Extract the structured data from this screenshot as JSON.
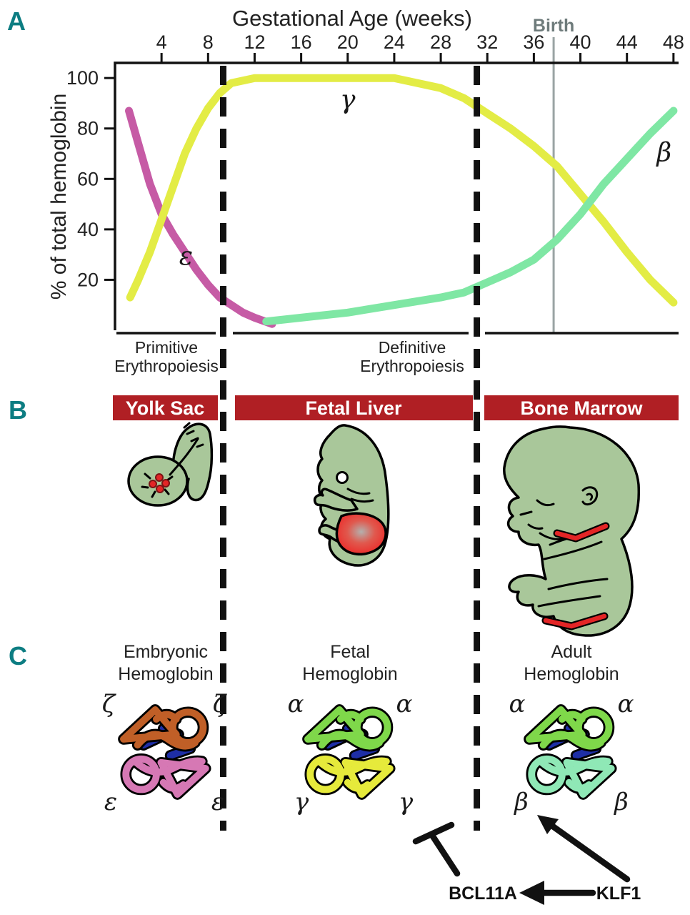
{
  "panel_labels": {
    "a": "A",
    "b": "B",
    "c": "C"
  },
  "chart_data": {
    "type": "line",
    "title": "Gestational Age (weeks)",
    "ylabel": "% of total hemoglobin",
    "x_ticks": [
      4,
      8,
      12,
      16,
      20,
      24,
      28,
      32,
      36,
      40,
      44,
      48
    ],
    "y_ticks": [
      20,
      40,
      60,
      80,
      100
    ],
    "xlim": [
      0,
      48.5
    ],
    "ylim": [
      0,
      106
    ],
    "grid": false,
    "legend": "inline-greek-labels",
    "birth_week": 37.7,
    "birth_label": "Birth",
    "stage_boundaries_weeks": [
      9.3,
      31.1
    ],
    "series": [
      {
        "name": "epsilon",
        "label": "ε",
        "color": "#c65ba5",
        "label_week": 6.1,
        "label_pct": 26,
        "x": [
          1.2,
          2,
          3,
          4,
          5,
          6,
          7,
          8,
          9,
          10,
          11,
          12,
          13.5
        ],
        "y": [
          87,
          74,
          58,
          46,
          38,
          31,
          24,
          18,
          13,
          10,
          7,
          5,
          2.5
        ]
      },
      {
        "name": "gamma",
        "label": "γ",
        "color": "#e3ec45",
        "label_week": 20,
        "label_pct": 88,
        "x": [
          1.3,
          2,
          3,
          4,
          5,
          6,
          7,
          8,
          9,
          10,
          12,
          16,
          20,
          24,
          26,
          28,
          30,
          32,
          34,
          36,
          38,
          40,
          42,
          44,
          46,
          48
        ],
        "y": [
          13,
          20,
          31,
          44,
          57,
          70,
          80,
          88,
          94,
          98,
          100,
          100,
          100,
          100,
          98,
          96,
          92,
          86,
          80,
          73,
          65,
          54,
          43,
          31,
          20,
          11
        ]
      },
      {
        "name": "beta",
        "label": "β",
        "color": "#7fe7a4",
        "label_week": 47.2,
        "label_pct": 67,
        "x": [
          13,
          16,
          20,
          24,
          28,
          30,
          32,
          34,
          36,
          38,
          40,
          42,
          44,
          46,
          48
        ],
        "y": [
          3.5,
          5,
          7,
          10,
          13,
          15,
          19,
          23,
          28,
          36,
          46,
          58,
          68,
          78,
          87
        ]
      }
    ],
    "stage_annotations": [
      {
        "line1": "Primitive",
        "line2": "Erythropoiesis"
      },
      {
        "line1": "Definitive",
        "line2": "Erythropoiesis"
      }
    ]
  },
  "panel_b": {
    "banner_color": "#b01f24",
    "banners": [
      {
        "label": "Yolk Sac"
      },
      {
        "label": "Fetal Liver"
      },
      {
        "label": "Bone Marrow"
      }
    ]
  },
  "panel_c": {
    "heme_color": "#1e2ea6",
    "molecules": [
      {
        "title_line1": "Embryonic",
        "title_line2": "Hemoglobin",
        "top_chain": "ζ",
        "bottom_chain": "ε",
        "top_color": "#c05f27",
        "bottom_color": "#d678b4"
      },
      {
        "title_line1": "Fetal",
        "title_line2": "Hemoglobin",
        "top_chain": "α",
        "bottom_chain": "γ",
        "top_color": "#7fd84a",
        "bottom_color": "#e6ea3b"
      },
      {
        "title_line1": "Adult",
        "title_line2": "Hemoglobin",
        "top_chain": "α",
        "bottom_chain": "β",
        "top_color": "#7fd84a",
        "bottom_color": "#8fe8b6"
      }
    ],
    "regulators": {
      "bcl11a": "BCL11A",
      "klf1": "KLF1"
    }
  }
}
